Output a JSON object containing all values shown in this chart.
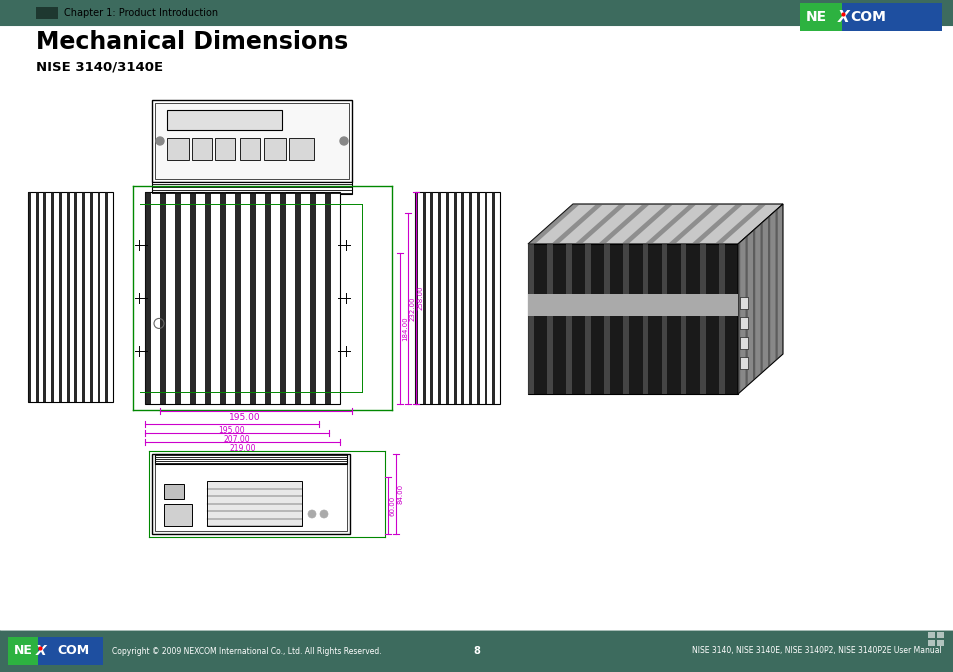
{
  "title": "Mechanical Dimensions",
  "subtitle": "NISE 3140/3140E",
  "header_text": "Chapter 1: Product Introduction",
  "footer_left": "Copyright © 2009 NEXCOM International Co., Ltd. All Rights Reserved.",
  "footer_center": "8",
  "footer_right": "NISE 3140, NISE 3140E, NISE 3140P2, NISE 3140P2E User Manual",
  "header_bar_color": "#3d6b5e",
  "footer_bar_color": "#3d6b5e",
  "nexcom_logo_green": "#2db240",
  "nexcom_logo_blue": "#1e4fa0",
  "dim_line_color": "#cc00cc",
  "dim_green_color": "#008800",
  "bg_color": "#ffffff",
  "dim_w1": "195.00",
  "dim_w2": "207.00",
  "dim_w3": "219.00",
  "dim_w4": "195.00",
  "dim_h1": "184.00",
  "dim_h2": "232.00",
  "dim_h3": "258.00",
  "dim_hb1": "60.00",
  "dim_hb2": "84.00"
}
